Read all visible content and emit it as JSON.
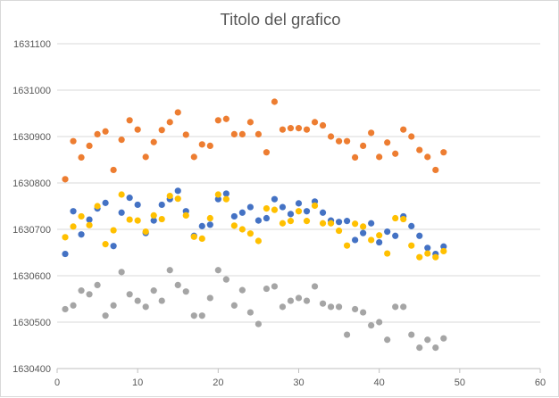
{
  "chart_data": {
    "type": "scatter",
    "title": "Titolo del grafico",
    "xlabel": "",
    "ylabel": "",
    "xlim": [
      0,
      60
    ],
    "ylim": [
      1630400,
      1631100
    ],
    "x_ticks": [
      0,
      10,
      20,
      30,
      40,
      50,
      60
    ],
    "y_ticks": [
      1630400,
      1630500,
      1630600,
      1630700,
      1630800,
      1630900,
      1631000,
      1631100
    ],
    "grid": "horizontal",
    "legend": "none",
    "series": [
      {
        "color": "#ED7D31",
        "points": [
          [
            1,
            1630808
          ],
          [
            2,
            1630890
          ],
          [
            3,
            1630855
          ],
          [
            4,
            1630880
          ],
          [
            5,
            1630905
          ],
          [
            6,
            1630911
          ],
          [
            7,
            1630828
          ],
          [
            8,
            1630893
          ],
          [
            9,
            1630935
          ],
          [
            10,
            1630915
          ],
          [
            11,
            1630856
          ],
          [
            12,
            1630888
          ],
          [
            13,
            1630914
          ],
          [
            14,
            1630931
          ],
          [
            15,
            1630952
          ],
          [
            16,
            1630904
          ],
          [
            17,
            1630856
          ],
          [
            18,
            1630883
          ],
          [
            19,
            1630880
          ],
          [
            20,
            1630935
          ],
          [
            21,
            1630938
          ],
          [
            22,
            1630905
          ],
          [
            23,
            1630905
          ],
          [
            24,
            1630931
          ],
          [
            25,
            1630905
          ],
          [
            26,
            1630866
          ],
          [
            27,
            1630975
          ],
          [
            28,
            1630915
          ],
          [
            29,
            1630918
          ],
          [
            30,
            1630918
          ],
          [
            31,
            1630915
          ],
          [
            32,
            1630931
          ],
          [
            33,
            1630924
          ],
          [
            34,
            1630900
          ],
          [
            35,
            1630890
          ],
          [
            36,
            1630890
          ],
          [
            37,
            1630855
          ],
          [
            38,
            1630880
          ],
          [
            39,
            1630908
          ],
          [
            40,
            1630856
          ],
          [
            41,
            1630887
          ],
          [
            42,
            1630863
          ],
          [
            43,
            1630915
          ],
          [
            44,
            1630900
          ],
          [
            45,
            1630871
          ],
          [
            46,
            1630856
          ],
          [
            47,
            1630828
          ],
          [
            48,
            1630866
          ]
        ]
      },
      {
        "color": "#4472C4",
        "points": [
          [
            1,
            1630647
          ],
          [
            2,
            1630739
          ],
          [
            3,
            1630689
          ],
          [
            4,
            1630721
          ],
          [
            5,
            1630745
          ],
          [
            6,
            1630757
          ],
          [
            7,
            1630664
          ],
          [
            8,
            1630736
          ],
          [
            9,
            1630768
          ],
          [
            10,
            1630753
          ],
          [
            11,
            1630692
          ],
          [
            12,
            1630719
          ],
          [
            13,
            1630753
          ],
          [
            14,
            1630765
          ],
          [
            15,
            1630783
          ],
          [
            16,
            1630739
          ],
          [
            17,
            1630686
          ],
          [
            18,
            1630707
          ],
          [
            19,
            1630710
          ],
          [
            20,
            1630765
          ],
          [
            21,
            1630777
          ],
          [
            22,
            1630728
          ],
          [
            23,
            1630736
          ],
          [
            24,
            1630748
          ],
          [
            25,
            1630719
          ],
          [
            26,
            1630724
          ],
          [
            27,
            1630765
          ],
          [
            28,
            1630748
          ],
          [
            29,
            1630733
          ],
          [
            30,
            1630756
          ],
          [
            31,
            1630739
          ],
          [
            32,
            1630760
          ],
          [
            33,
            1630736
          ],
          [
            34,
            1630719
          ],
          [
            35,
            1630716
          ],
          [
            36,
            1630718
          ],
          [
            37,
            1630677
          ],
          [
            38,
            1630692
          ],
          [
            39,
            1630713
          ],
          [
            40,
            1630672
          ],
          [
            41,
            1630695
          ],
          [
            42,
            1630686
          ],
          [
            43,
            1630728
          ],
          [
            44,
            1630707
          ],
          [
            45,
            1630686
          ],
          [
            46,
            1630660
          ],
          [
            47,
            1630647
          ],
          [
            48,
            1630663
          ]
        ]
      },
      {
        "color": "#FFC000",
        "points": [
          [
            1,
            1630683
          ],
          [
            2,
            1630706
          ],
          [
            3,
            1630728
          ],
          [
            4,
            1630709
          ],
          [
            5,
            1630750
          ],
          [
            6,
            1630668
          ],
          [
            7,
            1630698
          ],
          [
            8,
            1630775
          ],
          [
            9,
            1630721
          ],
          [
            10,
            1630719
          ],
          [
            11,
            1630695
          ],
          [
            12,
            1630730
          ],
          [
            13,
            1630722
          ],
          [
            14,
            1630772
          ],
          [
            15,
            1630766
          ],
          [
            16,
            1630730
          ],
          [
            17,
            1630684
          ],
          [
            18,
            1630680
          ],
          [
            19,
            1630724
          ],
          [
            20,
            1630775
          ],
          [
            21,
            1630765
          ],
          [
            22,
            1630708
          ],
          [
            23,
            1630700
          ],
          [
            24,
            1630691
          ],
          [
            25,
            1630675
          ],
          [
            26,
            1630745
          ],
          [
            27,
            1630742
          ],
          [
            28,
            1630713
          ],
          [
            29,
            1630718
          ],
          [
            30,
            1630739
          ],
          [
            31,
            1630718
          ],
          [
            32,
            1630751
          ],
          [
            33,
            1630713
          ],
          [
            34,
            1630713
          ],
          [
            35,
            1630697
          ],
          [
            36,
            1630665
          ],
          [
            37,
            1630712
          ],
          [
            38,
            1630706
          ],
          [
            39,
            1630677
          ],
          [
            40,
            1630687
          ],
          [
            41,
            1630648
          ],
          [
            42,
            1630724
          ],
          [
            43,
            1630722
          ],
          [
            44,
            1630665
          ],
          [
            45,
            1630640
          ],
          [
            46,
            1630648
          ],
          [
            47,
            1630640
          ],
          [
            48,
            1630653
          ]
        ]
      },
      {
        "color": "#A5A5A5",
        "points": [
          [
            1,
            1630528
          ],
          [
            2,
            1630536
          ],
          [
            3,
            1630568
          ],
          [
            4,
            1630560
          ],
          [
            5,
            1630580
          ],
          [
            6,
            1630514
          ],
          [
            7,
            1630536
          ],
          [
            8,
            1630608
          ],
          [
            9,
            1630560
          ],
          [
            10,
            1630546
          ],
          [
            11,
            1630533
          ],
          [
            12,
            1630568
          ],
          [
            13,
            1630546
          ],
          [
            14,
            1630612
          ],
          [
            15,
            1630580
          ],
          [
            16,
            1630566
          ],
          [
            17,
            1630514
          ],
          [
            18,
            1630514
          ],
          [
            19,
            1630552
          ],
          [
            20,
            1630612
          ],
          [
            21,
            1630592
          ],
          [
            22,
            1630536
          ],
          [
            23,
            1630569
          ],
          [
            24,
            1630521
          ],
          [
            25,
            1630496
          ],
          [
            26,
            1630572
          ],
          [
            27,
            1630577
          ],
          [
            28,
            1630533
          ],
          [
            29,
            1630546
          ],
          [
            30,
            1630552
          ],
          [
            31,
            1630546
          ],
          [
            32,
            1630577
          ],
          [
            33,
            1630540
          ],
          [
            34,
            1630533
          ],
          [
            35,
            1630533
          ],
          [
            36,
            1630473
          ],
          [
            37,
            1630528
          ],
          [
            38,
            1630521
          ],
          [
            39,
            1630493
          ],
          [
            40,
            1630500
          ],
          [
            41,
            1630462
          ],
          [
            42,
            1630533
          ],
          [
            43,
            1630533
          ],
          [
            44,
            1630473
          ],
          [
            45,
            1630445
          ],
          [
            46,
            1630462
          ],
          [
            47,
            1630445
          ],
          [
            48,
            1630465
          ]
        ]
      }
    ]
  }
}
